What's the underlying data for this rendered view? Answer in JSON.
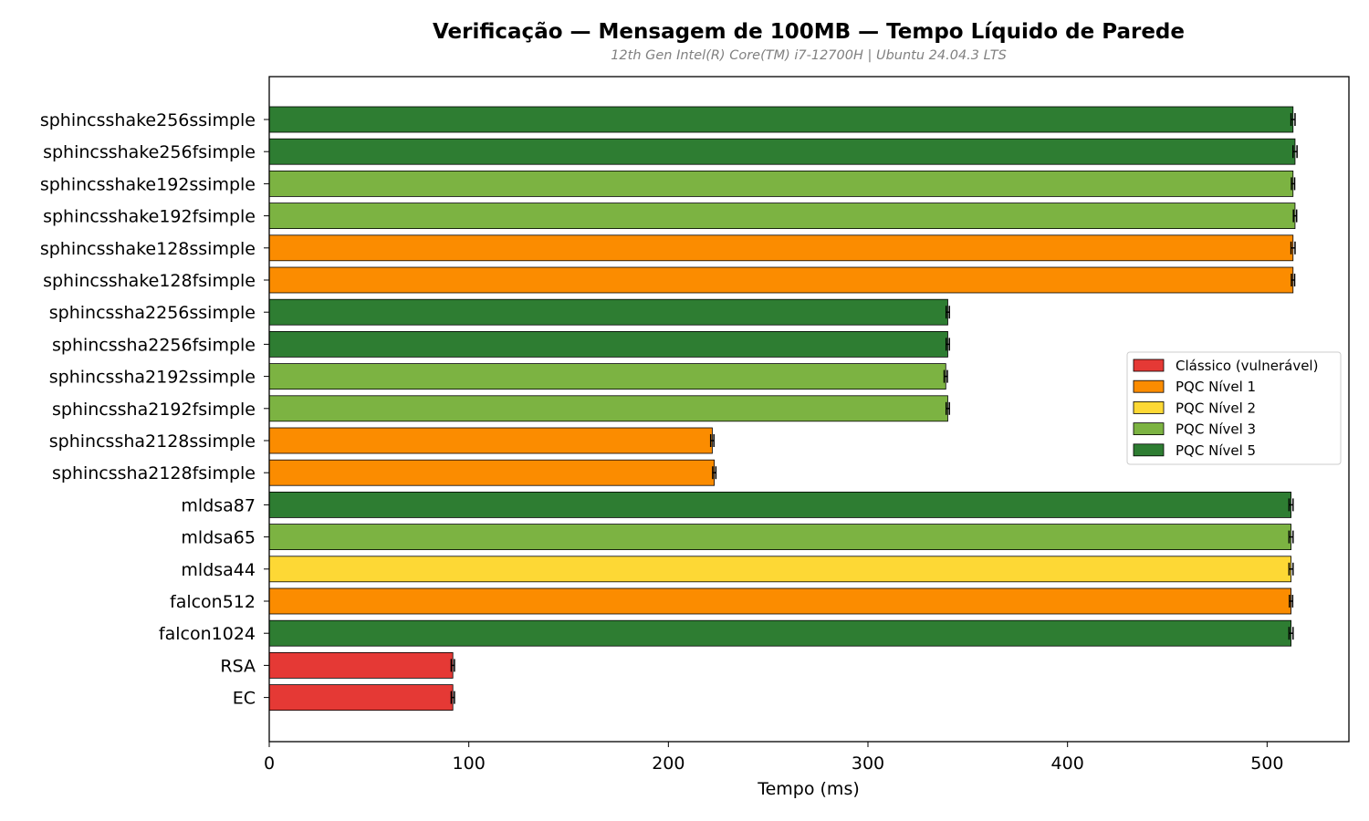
{
  "chart_data": {
    "type": "bar",
    "orientation": "horizontal",
    "title": "Verificação — Mensagem de 100MB — Tempo Líquido de Parede",
    "subtitle": "12th Gen Intel(R) Core(TM) i7-12700H | Ubuntu 24.04.3 LTS",
    "xlabel": "Tempo (ms)",
    "ylabel": "",
    "xlim": [
      0,
      541
    ],
    "xticks": [
      0,
      100,
      200,
      300,
      400,
      500
    ],
    "grid": false,
    "legend_position": "center-right",
    "colors": {
      "Clássico (vulnerável)": "#e53935",
      "PQC Nível 1": "#fb8c00",
      "PQC Nível 2": "#fdd835",
      "PQC Nível 3": "#7cb342",
      "PQC Nível 5": "#2e7d32"
    },
    "legend": [
      "Clássico (vulnerável)",
      "PQC Nível 1",
      "PQC Nível 2",
      "PQC Nível 3",
      "PQC Nível 5"
    ],
    "bars": [
      {
        "label": "sphincsshake256ssimple",
        "value": 513,
        "error": 1,
        "category": "PQC Nível 5"
      },
      {
        "label": "sphincsshake256fsimple",
        "value": 514,
        "error": 1,
        "category": "PQC Nível 5"
      },
      {
        "label": "sphincsshake192ssimple",
        "value": 513,
        "error": 0.8,
        "category": "PQC Nível 3"
      },
      {
        "label": "sphincsshake192fsimple",
        "value": 514,
        "error": 0.8,
        "category": "PQC Nível 3"
      },
      {
        "label": "sphincsshake128ssimple",
        "value": 513,
        "error": 1,
        "category": "PQC Nível 1"
      },
      {
        "label": "sphincsshake128fsimple",
        "value": 513,
        "error": 0.8,
        "category": "PQC Nível 1"
      },
      {
        "label": "sphincssha2256ssimple",
        "value": 340,
        "error": 0.8,
        "category": "PQC Nível 5"
      },
      {
        "label": "sphincssha2256fsimple",
        "value": 340,
        "error": 0.8,
        "category": "PQC Nível 5"
      },
      {
        "label": "sphincssha2192ssimple",
        "value": 339,
        "error": 0.8,
        "category": "PQC Nível 3"
      },
      {
        "label": "sphincssha2192fsimple",
        "value": 340,
        "error": 0.8,
        "category": "PQC Nível 3"
      },
      {
        "label": "sphincssha2128ssimple",
        "value": 222,
        "error": 0.8,
        "category": "PQC Nível 1"
      },
      {
        "label": "sphincssha2128fsimple",
        "value": 223,
        "error": 0.8,
        "category": "PQC Nível 1"
      },
      {
        "label": "mldsa87",
        "value": 512,
        "error": 1,
        "category": "PQC Nível 5"
      },
      {
        "label": "mldsa65",
        "value": 512,
        "error": 1,
        "category": "PQC Nível 3"
      },
      {
        "label": "mldsa44",
        "value": 512,
        "error": 1,
        "category": "PQC Nível 2"
      },
      {
        "label": "falcon512",
        "value": 512,
        "error": 0.8,
        "category": "PQC Nível 1"
      },
      {
        "label": "falcon1024",
        "value": 512,
        "error": 1,
        "category": "PQC Nível 5"
      },
      {
        "label": "RSA",
        "value": 92,
        "error": 0.8,
        "category": "Clássico (vulnerável)"
      },
      {
        "label": "EC",
        "value": 92,
        "error": 0.8,
        "category": "Clássico (vulnerável)"
      }
    ]
  }
}
